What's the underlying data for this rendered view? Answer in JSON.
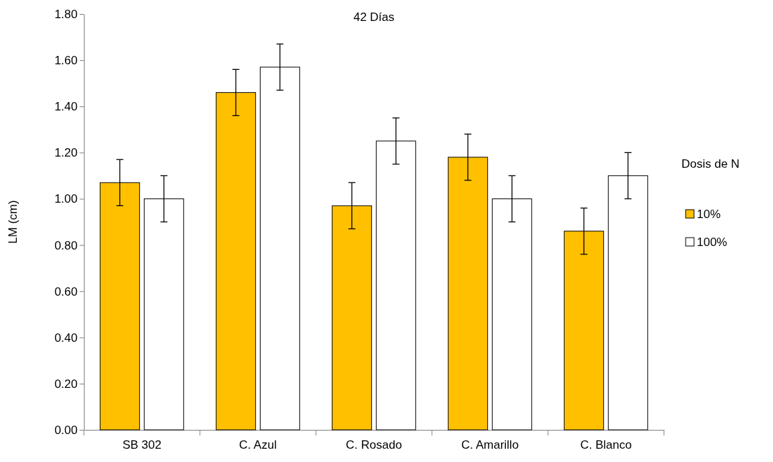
{
  "chart_data": {
    "type": "bar",
    "title": "42  Días",
    "ylabel": "LM (cm)",
    "legend_title": "Dosis de N",
    "legend": "right",
    "grid": false,
    "categories": [
      "SB 302",
      "C. Azul",
      "C. Rosado",
      "C. Amarillo",
      "C. Blanco"
    ],
    "series": [
      {
        "name": "10%",
        "color": "#ffc000",
        "values": [
          1.07,
          1.46,
          0.97,
          1.18,
          0.86
        ],
        "errors": [
          0.1,
          0.1,
          0.1,
          0.1,
          0.1
        ]
      },
      {
        "name": "100%",
        "color": "#ffffff",
        "values": [
          1.0,
          1.57,
          1.25,
          1.0,
          1.1
        ],
        "errors": [
          0.1,
          0.1,
          0.1,
          0.1,
          0.1
        ]
      }
    ],
    "ylim": [
      0,
      1.8
    ],
    "yticks": [
      {
        "value": 0,
        "label": "0.00"
      },
      {
        "value": 0.2,
        "label": "0.20"
      },
      {
        "value": 0.4,
        "label": "0.40"
      },
      {
        "value": 0.6,
        "label": "0.60"
      },
      {
        "value": 0.8,
        "label": "0.80"
      },
      {
        "value": 1.0,
        "label": "1.00"
      },
      {
        "value": 1.2,
        "label": "1.20"
      },
      {
        "value": 1.4,
        "label": "1.40"
      },
      {
        "value": 1.6,
        "label": "1.60"
      },
      {
        "value": 1.8,
        "label": "1.80"
      }
    ]
  }
}
